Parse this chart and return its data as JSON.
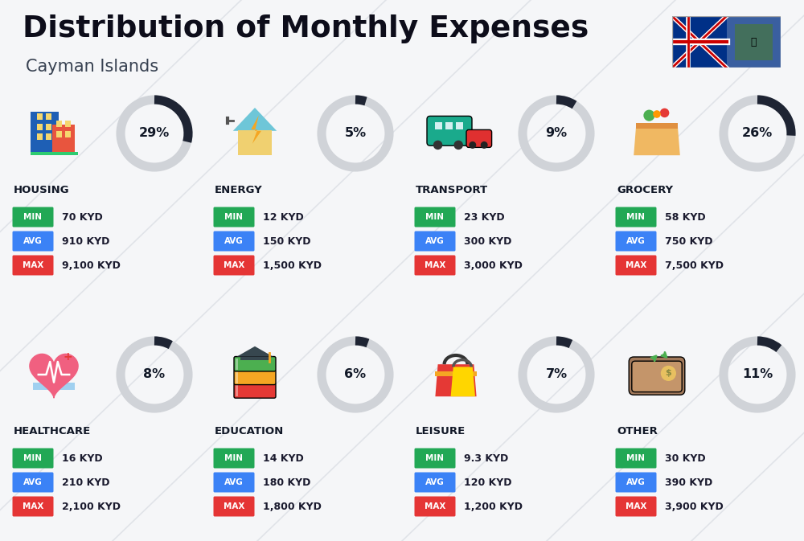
{
  "title": "Distribution of Monthly Expenses",
  "subtitle": "Cayman Islands",
  "background_color": "#f5f6f8",
  "categories": [
    {
      "name": "HOUSING",
      "pct": 29,
      "min_val": "70 KYD",
      "avg_val": "910 KYD",
      "max_val": "9,100 KYD",
      "row": 0,
      "col": 0
    },
    {
      "name": "ENERGY",
      "pct": 5,
      "min_val": "12 KYD",
      "avg_val": "150 KYD",
      "max_val": "1,500 KYD",
      "row": 0,
      "col": 1
    },
    {
      "name": "TRANSPORT",
      "pct": 9,
      "min_val": "23 KYD",
      "avg_val": "300 KYD",
      "max_val": "3,000 KYD",
      "row": 0,
      "col": 2
    },
    {
      "name": "GROCERY",
      "pct": 26,
      "min_val": "58 KYD",
      "avg_val": "750 KYD",
      "max_val": "7,500 KYD",
      "row": 0,
      "col": 3
    },
    {
      "name": "HEALTHCARE",
      "pct": 8,
      "min_val": "16 KYD",
      "avg_val": "210 KYD",
      "max_val": "2,100 KYD",
      "row": 1,
      "col": 0
    },
    {
      "name": "EDUCATION",
      "pct": 6,
      "min_val": "14 KYD",
      "avg_val": "180 KYD",
      "max_val": "1,800 KYD",
      "row": 1,
      "col": 1
    },
    {
      "name": "LEISURE",
      "pct": 7,
      "min_val": "9.3 KYD",
      "avg_val": "120 KYD",
      "max_val": "1,200 KYD",
      "row": 1,
      "col": 2
    },
    {
      "name": "OTHER",
      "pct": 11,
      "min_val": "30 KYD",
      "avg_val": "390 KYD",
      "max_val": "3,900 KYD",
      "row": 1,
      "col": 3
    }
  ],
  "min_color": "#22a855",
  "avg_color": "#3b82f6",
  "max_color": "#e53535",
  "label_text_color": "#ffffff",
  "value_text_color": "#1a1a2e",
  "category_text_color": "#111827",
  "pct_text_color": "#111827",
  "circle_bg_color": "#d0d3d8",
  "circle_fill_color": "#1e2433",
  "title_color": "#0d0d1a",
  "subtitle_color": "#374151",
  "diagonal_color": "#c8cdd6",
  "row_tops": [
    5.55,
    2.55
  ],
  "col_starts": [
    0.12,
    2.62,
    5.12,
    7.62
  ],
  "icon_map": {
    "HOUSING": "🏗",
    "ENERGY": "⚡",
    "TRANSPORT": "🚌",
    "GROCERY": "🛒",
    "HEALTHCARE": "🏥",
    "EDUCATION": "🎓",
    "LEISURE": "🛍",
    "OTHER": "💰"
  }
}
